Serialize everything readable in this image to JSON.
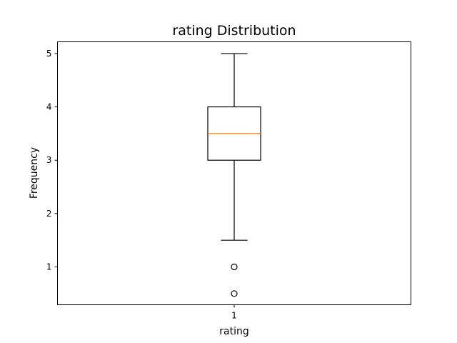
{
  "chart_data": {
    "type": "box",
    "title": "rating Distribution",
    "xlabel": "rating",
    "ylabel": "Frequency",
    "categories": [
      "1"
    ],
    "ylim": [
      0.29,
      5.22
    ],
    "yticks": [
      1,
      2,
      3,
      4,
      5
    ],
    "grid": false,
    "boxes": [
      {
        "category": "1",
        "whisker_low": 1.5,
        "q1": 3.0,
        "median": 3.5,
        "q3": 4.0,
        "whisker_high": 5.0,
        "outliers": [
          1.0,
          0.5
        ]
      }
    ],
    "colors": {
      "box": "#000000",
      "median": "#ff7f0e",
      "axes": "#000000"
    }
  }
}
